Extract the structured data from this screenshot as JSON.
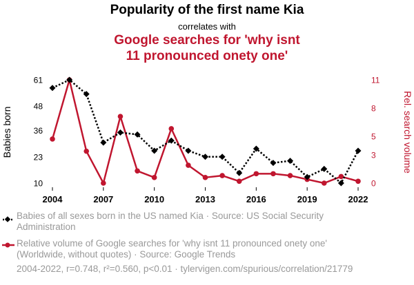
{
  "header": {
    "title": "Popularity of the first name Kia",
    "subtitle": "correlates with",
    "title2_line1": "Google searches for 'why isnt",
    "title2_line2": "11 pronounced onety one'"
  },
  "colors": {
    "series1": "#000000",
    "series2": "#c0162f",
    "muted_text": "#999999",
    "grid": "#dddddd"
  },
  "chart_data": {
    "type": "line",
    "x": [
      2004,
      2005,
      2006,
      2007,
      2008,
      2009,
      2010,
      2011,
      2012,
      2013,
      2014,
      2015,
      2016,
      2017,
      2018,
      2019,
      2020,
      2021,
      2022
    ],
    "x_ticks": [
      2004,
      2007,
      2010,
      2013,
      2016,
      2019,
      2022
    ],
    "xlim": [
      2004,
      2022
    ],
    "left_axis": {
      "label": "Babies born",
      "ticks": [
        10,
        23,
        36,
        48,
        61
      ],
      "ylim": [
        10,
        61
      ]
    },
    "right_axis": {
      "label": "Rel. search volume",
      "ticks": [
        0,
        3,
        5,
        8,
        11
      ],
      "ylim": [
        0,
        11
      ]
    },
    "series": [
      {
        "axis": "left",
        "style": "dotted-diamond",
        "values": [
          57,
          61,
          54,
          30,
          35,
          34,
          26,
          31,
          26,
          23,
          23,
          15,
          27,
          20,
          21,
          13,
          17,
          10,
          26
        ]
      },
      {
        "axis": "right",
        "style": "solid-circle",
        "values": [
          4.7,
          11,
          3.4,
          0,
          7.1,
          1.3,
          0.6,
          5.8,
          1.9,
          0.6,
          0.8,
          0.2,
          1.0,
          1.0,
          0.8,
          0.4,
          0,
          0.7,
          0.2
        ]
      }
    ],
    "grid": false
  },
  "legend": {
    "item1": "Babies of all sexes born in the US named Kia · Source: US Social Security Administration",
    "item2": "Relative volume of Google searches for 'why isnt 11 pronounced onety one' (Worldwide, without quotes) · Source: Google Trends"
  },
  "footer": "2004-2022, r=0.748, r²=0.560, p<0.01 · tylervigen.com/spurious/correlation/21779"
}
